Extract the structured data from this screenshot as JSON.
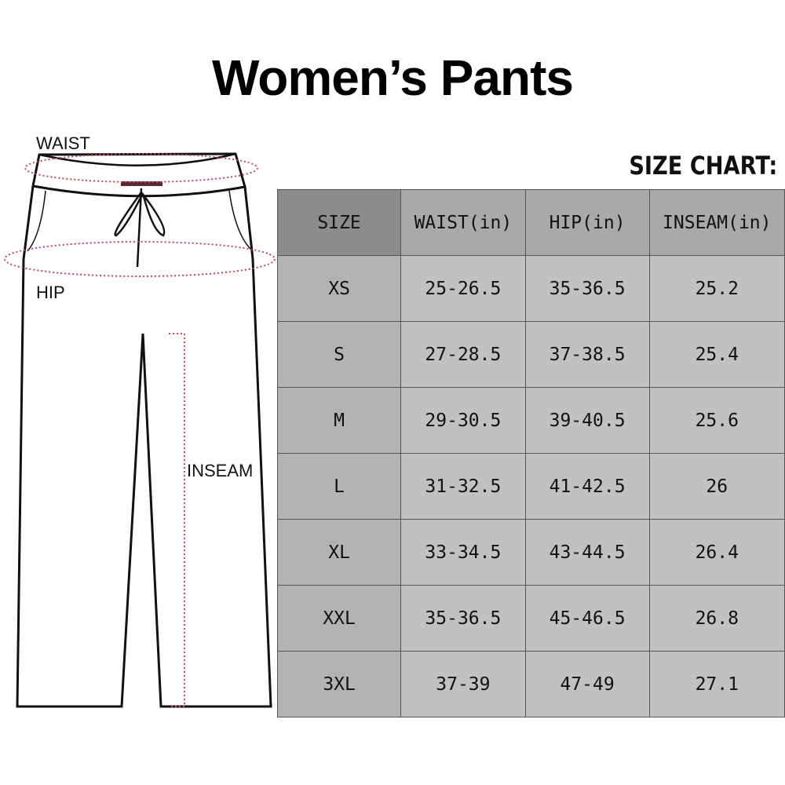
{
  "title": "Women’s Pants",
  "chart_label": "SIZE CHART:",
  "diagram": {
    "waist": "WAIST",
    "hip": "HIP",
    "inseam": "INSEAM",
    "measure_line_color": "#c0485a"
  },
  "table": {
    "headers": [
      "SIZE",
      "WAIST(in)",
      "HIP(in)",
      "INSEAM(in)"
    ],
    "rows": [
      [
        "XS",
        "25-26.5",
        "35-36.5",
        "25.2"
      ],
      [
        "S",
        "27-28.5",
        "37-38.5",
        "25.4"
      ],
      [
        "M",
        "29-30.5",
        "39-40.5",
        "25.6"
      ],
      [
        "L",
        "31-32.5",
        "41-42.5",
        "26"
      ],
      [
        "XL",
        "33-34.5",
        "43-44.5",
        "26.4"
      ],
      [
        "XXL",
        "35-36.5",
        "45-46.5",
        "26.8"
      ],
      [
        "3XL",
        "37-39",
        "47-49",
        "27.1"
      ]
    ]
  }
}
